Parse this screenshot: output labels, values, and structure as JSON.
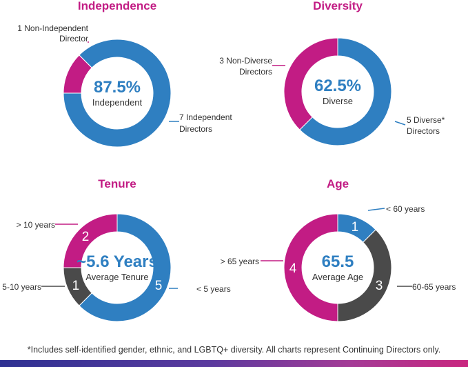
{
  "colors": {
    "blue": "#2f7fc1",
    "magenta": "#c21c84",
    "gray": "#4a4a4a",
    "title": "#c21c84",
    "center": "#2f7fc1"
  },
  "footnote": "*Includes self-identified gender, ethnic, and LGBTQ+ diversity. All charts represent Continuing Directors only.",
  "chart_data": [
    {
      "type": "pie",
      "title": "Independence",
      "center_value": "87.5%",
      "center_label": "Independent",
      "slices": [
        {
          "label": "7 Independent Directors",
          "value": 7,
          "color": "blue",
          "callout": [
            "7 Independent",
            "Directors"
          ]
        },
        {
          "label": "1 Non-Independent Director",
          "value": 1,
          "color": "magenta",
          "callout": [
            "1 Non-Independent",
            "Director"
          ]
        }
      ]
    },
    {
      "type": "pie",
      "title": "Diversity",
      "center_value": "62.5%",
      "center_label": "Diverse",
      "slices": [
        {
          "label": "5 Diverse* Directors",
          "value": 5,
          "color": "blue",
          "callout": [
            "5 Diverse*",
            "Directors"
          ]
        },
        {
          "label": "3 Non-Diverse Directors",
          "value": 3,
          "color": "magenta",
          "callout": [
            "3 Non-Diverse",
            "Directors"
          ]
        }
      ]
    },
    {
      "type": "pie",
      "title": "Tenure",
      "center_value": "~5.6 Years",
      "center_label": "Average Tenure",
      "slices": [
        {
          "label": "< 5 years",
          "value": 5,
          "color": "blue",
          "callout": [
            "< 5 years"
          ],
          "count_label": "5"
        },
        {
          "label": "5-10 years",
          "value": 1,
          "color": "gray",
          "callout": [
            "5-10 years"
          ],
          "count_label": "1"
        },
        {
          "label": "> 10 years",
          "value": 2,
          "color": "magenta",
          "callout": [
            "> 10 years"
          ],
          "count_label": "2"
        }
      ]
    },
    {
      "type": "pie",
      "title": "Age",
      "center_value": "65.5",
      "center_label": "Average Age",
      "slices": [
        {
          "label": "< 60 years",
          "value": 1,
          "color": "blue",
          "callout": [
            "< 60 years"
          ],
          "count_label": "1"
        },
        {
          "label": "60-65 years",
          "value": 3,
          "color": "gray",
          "callout": [
            "60-65 years"
          ],
          "count_label": "3"
        },
        {
          "label": "> 65 years",
          "value": 4,
          "color": "magenta",
          "callout": [
            "> 65 years"
          ],
          "count_label": "4"
        }
      ]
    }
  ]
}
